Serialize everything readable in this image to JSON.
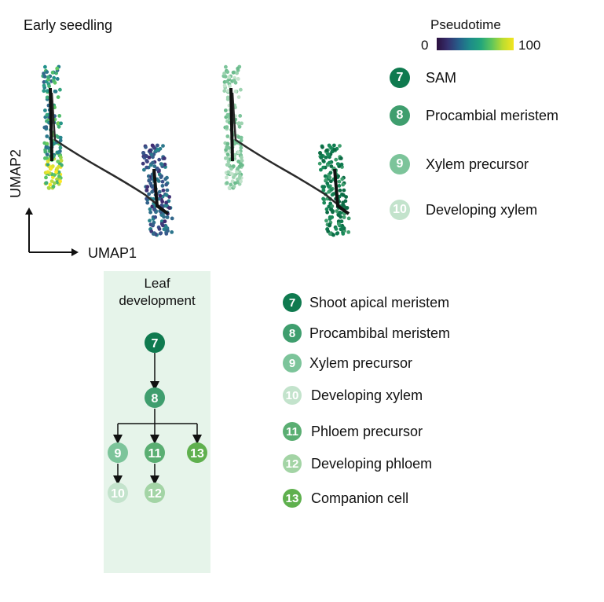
{
  "title": "Early seedling",
  "pseudotime": {
    "label": "Pseudotime",
    "min": "0",
    "max": "100"
  },
  "axes": {
    "x": "UMAP1",
    "y": "UMAP2"
  },
  "colors": {
    "c7": "#0f7a4f",
    "c8": "#3f9e6e",
    "c9": "#7cc49a",
    "c10": "#c3e3cc",
    "c11": "#5aae72",
    "c12": "#a3d4a5",
    "c13": "#5fb04e",
    "panel": "#e6f4ea"
  },
  "legend_top": [
    {
      "num": "7",
      "label": "SAM"
    },
    {
      "num": "8",
      "label": "Procambial meristem"
    },
    {
      "num": "9",
      "label": "Xylem precursor"
    },
    {
      "num": "10",
      "label": "Developing xylem"
    }
  ],
  "panel": {
    "title_line1": "Leaf",
    "title_line2": "development"
  },
  "tree_nodes": [
    "7",
    "8",
    "9",
    "11",
    "13",
    "10",
    "12"
  ],
  "legend_bottom": [
    {
      "num": "7",
      "label": "Shoot apical meristem"
    },
    {
      "num": "8",
      "label": "Procambibal meristem"
    },
    {
      "num": "9",
      "label": "Xylem precursor"
    },
    {
      "num": "10",
      "label": "Developing xylem"
    },
    {
      "num": "11",
      "label": "Phloem precursor"
    },
    {
      "num": "12",
      "label": "Developing phloem"
    },
    {
      "num": "13",
      "label": "Companion cell"
    }
  ]
}
